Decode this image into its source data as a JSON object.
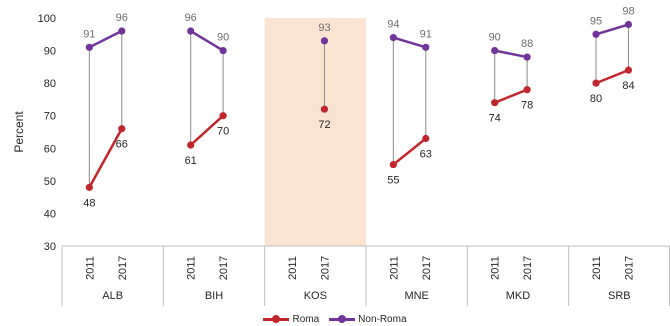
{
  "chart_data": {
    "type": "line",
    "ylabel": "Percent",
    "ylim": [
      30,
      100
    ],
    "yticks": [
      30,
      40,
      50,
      60,
      70,
      80,
      90,
      100
    ],
    "groups": [
      {
        "name": "ALB",
        "years": [
          "2011",
          "2017"
        ],
        "roma": [
          48,
          66
        ],
        "non_roma": [
          91,
          96
        ],
        "highlight": false
      },
      {
        "name": "BIH",
        "years": [
          "2011",
          "2017"
        ],
        "roma": [
          61,
          70
        ],
        "non_roma": [
          96,
          90
        ],
        "highlight": false
      },
      {
        "name": "KOS",
        "years": [
          "2011",
          "2017"
        ],
        "roma": [
          null,
          72
        ],
        "non_roma": [
          null,
          93
        ],
        "highlight": true
      },
      {
        "name": "MNE",
        "years": [
          "2011",
          "2017"
        ],
        "roma": [
          55,
          63
        ],
        "non_roma": [
          94,
          91
        ],
        "highlight": false
      },
      {
        "name": "MKD",
        "years": [
          "2011",
          "2017"
        ],
        "roma": [
          74,
          78
        ],
        "non_roma": [
          90,
          88
        ],
        "highlight": false
      },
      {
        "name": "SRB",
        "years": [
          "2011",
          "2017"
        ],
        "roma": [
          80,
          84
        ],
        "non_roma": [
          95,
          98
        ],
        "highlight": false
      }
    ],
    "series": [
      {
        "name": "Roma",
        "key": "roma",
        "color": "#c0262c"
      },
      {
        "name": "Non-Roma",
        "key": "non_roma",
        "color": "#70349a"
      }
    ],
    "connector_color": "#8a8a8a",
    "highlight_color": "#fbe3d2",
    "grid": false,
    "legend_position": "bottom"
  }
}
